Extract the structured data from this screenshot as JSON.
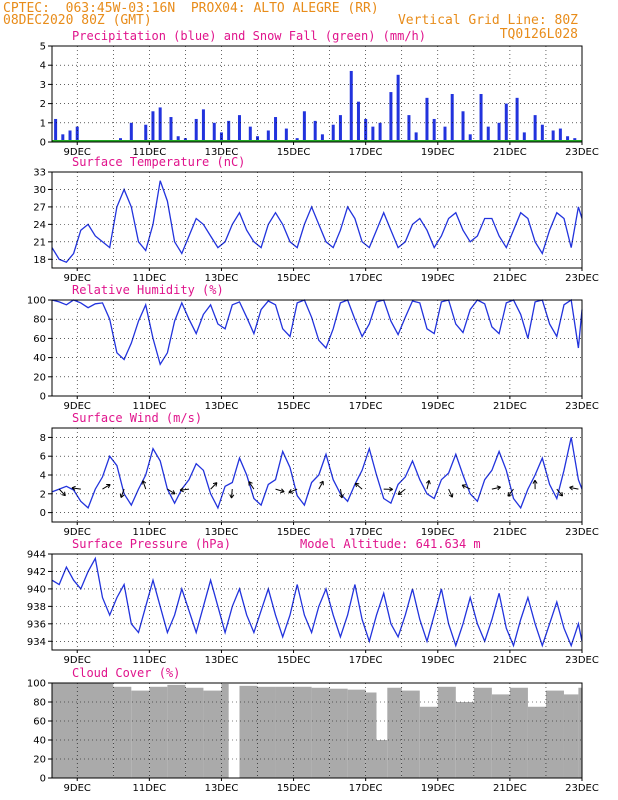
{
  "header": {
    "line1_left": "CPTEC:  063:45W-03:16N  PROX04: ALTO ALEGRE (RR)",
    "line2_left": "08DEC2020 80Z (GMT)",
    "line2_right": "Vertical Grid Line: 80Z",
    "line3_right": "TQ0126L028"
  },
  "colors": {
    "header": "#e88c1a",
    "title": "#e0148c",
    "line": "#2233dd",
    "snow": "#22aa22",
    "cloud": "#aaaaaa"
  },
  "x_labels": [
    "9DEC",
    "11DEC",
    "13DEC",
    "15DEC",
    "17DEC",
    "19DEC",
    "21DEC",
    "23DEC"
  ],
  "chart_data": [
    {
      "type": "bar",
      "title": "Precipitation (blue) and Snow Fall (green) (mm/h)",
      "ylim": [
        0,
        5
      ],
      "yticks": [
        "0",
        "1",
        "2",
        "3",
        "4",
        "5"
      ],
      "x_range_days": [
        8.3,
        23.0
      ],
      "series": [
        {
          "name": "Precipitation",
          "color": "#2233dd",
          "x": [
            8.4,
            8.6,
            8.8,
            9.0,
            10.2,
            10.5,
            10.9,
            11.1,
            11.3,
            11.6,
            11.8,
            12.0,
            12.3,
            12.5,
            12.8,
            13.0,
            13.2,
            13.5,
            13.8,
            14.0,
            14.3,
            14.5,
            14.8,
            15.1,
            15.3,
            15.6,
            15.8,
            16.1,
            16.3,
            16.6,
            16.8,
            17.0,
            17.2,
            17.4,
            17.7,
            17.9,
            18.2,
            18.4,
            18.7,
            18.9,
            19.2,
            19.4,
            19.7,
            19.9,
            20.2,
            20.4,
            20.7,
            20.9,
            21.2,
            21.4,
            21.7,
            21.9,
            22.2,
            22.4,
            22.6,
            22.8
          ],
          "values": [
            1.2,
            0.4,
            0.6,
            0.8,
            0.2,
            1.0,
            0.9,
            1.6,
            1.8,
            1.3,
            0.3,
            0.2,
            1.2,
            1.7,
            1.0,
            0.5,
            1.1,
            1.4,
            0.8,
            0.3,
            0.6,
            1.3,
            0.7,
            0.2,
            1.6,
            1.1,
            0.4,
            0.9,
            1.4,
            3.7,
            2.1,
            1.2,
            0.8,
            1.0,
            2.6,
            3.5,
            1.4,
            0.5,
            2.3,
            1.2,
            0.8,
            2.5,
            1.6,
            0.4,
            2.5,
            0.8,
            1.0,
            2.0,
            2.3,
            0.5,
            1.4,
            0.9,
            0.6,
            0.7,
            0.3,
            0.2
          ]
        },
        {
          "name": "Snow Fall",
          "color": "#22aa22",
          "values": [
            0
          ]
        }
      ]
    },
    {
      "type": "line",
      "title": "Surface Temperature (nC)",
      "ylim": [
        16.5,
        33
      ],
      "yticks": [
        "18",
        "21",
        "24",
        "27",
        "30",
        "33"
      ],
      "x": [
        8.3,
        8.5,
        8.7,
        8.9,
        9.1,
        9.3,
        9.5,
        9.7,
        9.9,
        10.1,
        10.3,
        10.5,
        10.7,
        10.9,
        11.1,
        11.3,
        11.5,
        11.7,
        11.9,
        12.1,
        12.3,
        12.5,
        12.7,
        12.9,
        13.1,
        13.3,
        13.5,
        13.7,
        13.9,
        14.1,
        14.3,
        14.5,
        14.7,
        14.9,
        15.1,
        15.3,
        15.5,
        15.7,
        15.9,
        16.1,
        16.3,
        16.5,
        16.7,
        16.9,
        17.1,
        17.3,
        17.5,
        17.7,
        17.9,
        18.1,
        18.3,
        18.5,
        18.7,
        18.9,
        19.1,
        19.3,
        19.5,
        19.7,
        19.9,
        20.1,
        20.3,
        20.5,
        20.7,
        20.9,
        21.1,
        21.3,
        21.5,
        21.7,
        21.9,
        22.1,
        22.3,
        22.5,
        22.7,
        22.9,
        23.0
      ],
      "values": [
        20,
        18,
        17.5,
        19,
        23,
        24,
        22,
        21,
        20,
        27,
        30,
        27,
        21,
        19.5,
        24,
        31.5,
        28,
        21,
        19,
        22,
        25,
        24,
        22,
        20,
        21,
        24,
        26,
        23,
        21,
        20,
        24,
        26,
        24,
        21,
        20,
        24,
        27,
        24,
        21,
        20,
        23,
        27,
        25,
        21,
        20,
        23,
        26,
        23,
        20,
        21,
        24,
        25,
        23,
        20,
        22,
        25,
        26,
        23,
        21,
        22,
        25,
        25,
        22,
        20,
        23,
        26,
        25,
        21,
        19,
        23,
        26,
        25,
        20,
        27,
        25
      ]
    },
    {
      "type": "line",
      "title": "Relative Humidity (%)",
      "ylim": [
        0,
        100
      ],
      "yticks": [
        "0",
        "20",
        "40",
        "60",
        "80",
        "100"
      ],
      "x": [
        8.3,
        8.5,
        8.7,
        8.9,
        9.1,
        9.3,
        9.5,
        9.7,
        9.9,
        10.1,
        10.3,
        10.5,
        10.7,
        10.9,
        11.1,
        11.3,
        11.5,
        11.7,
        11.9,
        12.1,
        12.3,
        12.5,
        12.7,
        12.9,
        13.1,
        13.3,
        13.5,
        13.7,
        13.9,
        14.1,
        14.3,
        14.5,
        14.7,
        14.9,
        15.1,
        15.3,
        15.5,
        15.7,
        15.9,
        16.1,
        16.3,
        16.5,
        16.7,
        16.9,
        17.1,
        17.3,
        17.5,
        17.7,
        17.9,
        18.1,
        18.3,
        18.5,
        18.7,
        18.9,
        19.1,
        19.3,
        19.5,
        19.7,
        19.9,
        20.1,
        20.3,
        20.5,
        20.7,
        20.9,
        21.1,
        21.3,
        21.5,
        21.7,
        21.9,
        22.1,
        22.3,
        22.5,
        22.7,
        22.9,
        23.0
      ],
      "values": [
        100,
        98,
        95,
        100,
        97,
        92,
        96,
        97,
        80,
        45,
        38,
        55,
        78,
        95,
        60,
        33,
        45,
        78,
        97,
        80,
        65,
        85,
        95,
        75,
        70,
        95,
        98,
        82,
        65,
        90,
        99,
        95,
        70,
        62,
        97,
        100,
        82,
        58,
        50,
        70,
        97,
        100,
        80,
        62,
        75,
        98,
        100,
        78,
        64,
        82,
        99,
        97,
        70,
        65,
        98,
        100,
        75,
        66,
        90,
        100,
        96,
        72,
        65,
        97,
        100,
        85,
        60,
        98,
        100,
        75,
        62,
        95,
        100,
        50,
        90
      ]
    },
    {
      "type": "line",
      "title": "Surface Wind (m/s)",
      "ylim": [
        -1,
        9
      ],
      "yticks": [
        "0",
        "2",
        "4",
        "6",
        "8"
      ],
      "x": [
        8.3,
        8.5,
        8.7,
        8.9,
        9.1,
        9.3,
        9.5,
        9.7,
        9.9,
        10.1,
        10.3,
        10.5,
        10.7,
        10.9,
        11.1,
        11.3,
        11.5,
        11.7,
        11.9,
        12.1,
        12.3,
        12.5,
        12.7,
        12.9,
        13.1,
        13.3,
        13.5,
        13.7,
        13.9,
        14.1,
        14.3,
        14.5,
        14.7,
        14.9,
        15.1,
        15.3,
        15.5,
        15.7,
        15.9,
        16.1,
        16.3,
        16.5,
        16.7,
        16.9,
        17.1,
        17.3,
        17.5,
        17.7,
        17.9,
        18.1,
        18.3,
        18.5,
        18.7,
        18.9,
        19.1,
        19.3,
        19.5,
        19.7,
        19.9,
        20.1,
        20.3,
        20.5,
        20.7,
        20.9,
        21.1,
        21.3,
        21.5,
        21.7,
        21.9,
        22.1,
        22.3,
        22.5,
        22.7,
        22.9,
        23.0
      ],
      "values": [
        2.2,
        2.5,
        2.8,
        2.4,
        1.2,
        0.5,
        2.5,
        3.8,
        6.0,
        5.0,
        2.0,
        0.8,
        2.5,
        4.0,
        6.8,
        5.5,
        2.5,
        1.0,
        2.5,
        3.5,
        5.2,
        4.5,
        2.0,
        0.5,
        2.8,
        3.2,
        5.8,
        4.0,
        1.5,
        0.8,
        3.0,
        3.5,
        6.5,
        4.8,
        1.8,
        0.8,
        3.2,
        4.0,
        6.2,
        3.5,
        2.0,
        1.2,
        3.0,
        4.5,
        6.8,
        4.0,
        1.5,
        1.0,
        3.0,
        3.8,
        5.5,
        3.5,
        2.0,
        1.5,
        3.5,
        4.2,
        6.2,
        4.0,
        2.0,
        1.2,
        3.5,
        4.5,
        6.5,
        4.5,
        1.5,
        0.5,
        2.5,
        4.0,
        5.8,
        3.0,
        1.5,
        4.5,
        8.0,
        3.5,
        2.5
      ]
    },
    {
      "type": "line",
      "title": "Surface Pressure (hPa)",
      "annotation": "Model Altitude: 641.634 m",
      "ylim": [
        933,
        944
      ],
      "yticks": [
        "934",
        "936",
        "938",
        "940",
        "942",
        "944"
      ],
      "x": [
        8.3,
        8.5,
        8.7,
        8.9,
        9.1,
        9.3,
        9.5,
        9.7,
        9.9,
        10.1,
        10.3,
        10.5,
        10.7,
        10.9,
        11.1,
        11.3,
        11.5,
        11.7,
        11.9,
        12.1,
        12.3,
        12.5,
        12.7,
        12.9,
        13.1,
        13.3,
        13.5,
        13.7,
        13.9,
        14.1,
        14.3,
        14.5,
        14.7,
        14.9,
        15.1,
        15.3,
        15.5,
        15.7,
        15.9,
        16.1,
        16.3,
        16.5,
        16.7,
        16.9,
        17.1,
        17.3,
        17.5,
        17.7,
        17.9,
        18.1,
        18.3,
        18.5,
        18.7,
        18.9,
        19.1,
        19.3,
        19.5,
        19.7,
        19.9,
        20.1,
        20.3,
        20.5,
        20.7,
        20.9,
        21.1,
        21.3,
        21.5,
        21.7,
        21.9,
        22.1,
        22.3,
        22.5,
        22.7,
        22.9,
        23.0
      ],
      "values": [
        941,
        940.5,
        942.5,
        941,
        940,
        942,
        943.5,
        939,
        937,
        939,
        940.5,
        936,
        935,
        938,
        941,
        938,
        935,
        937,
        940,
        937.5,
        935,
        938,
        941,
        938,
        935,
        938,
        940,
        937,
        935,
        937.5,
        940,
        937,
        934.5,
        937,
        940.5,
        937,
        935,
        938,
        940,
        937,
        934.5,
        937,
        940.5,
        936.5,
        934,
        937,
        939.5,
        936,
        934.5,
        937,
        940,
        936.5,
        934,
        937,
        940,
        936,
        933.5,
        936,
        939,
        936,
        934,
        936.5,
        939.5,
        935.5,
        933.5,
        936.5,
        939,
        936,
        933.5,
        936,
        938.5,
        935.5,
        933.5,
        936,
        934
      ]
    },
    {
      "type": "bar",
      "title": "Cloud Cover (%)",
      "ylim": [
        0,
        100
      ],
      "yticks": [
        "0",
        "20",
        "40",
        "60",
        "80",
        "100"
      ],
      "x": [
        9.0,
        10.0,
        10.5,
        11.0,
        11.5,
        12.0,
        12.5,
        13.0,
        13.2,
        13.5,
        14.0,
        14.5,
        15.0,
        15.5,
        16.0,
        16.5,
        17.0,
        17.3,
        17.6,
        18.0,
        18.5,
        19.0,
        19.5,
        20.0,
        20.5,
        21.0,
        21.5,
        22.0,
        22.5,
        22.9
      ],
      "values": [
        100,
        96,
        92,
        96,
        98,
        95,
        92,
        99,
        0,
        97,
        96,
        96,
        96,
        95,
        94,
        93,
        90,
        40,
        95,
        92,
        75,
        96,
        80,
        95,
        88,
        95,
        75,
        92,
        88,
        95
      ]
    }
  ]
}
